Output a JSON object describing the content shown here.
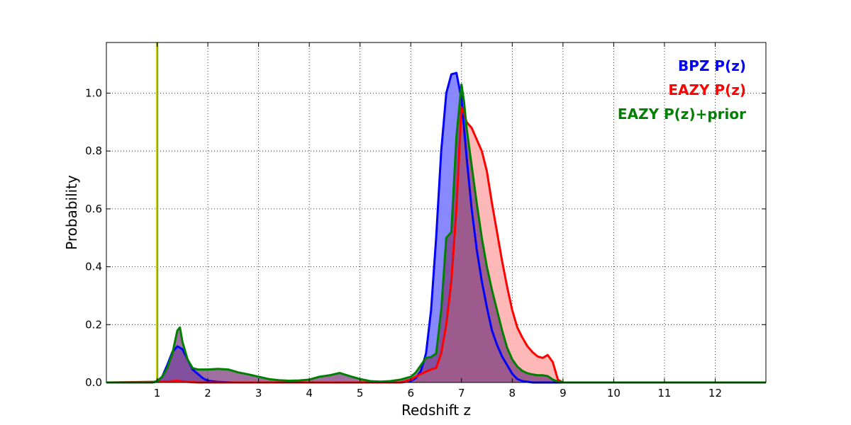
{
  "chart_data": {
    "type": "area",
    "title": "",
    "xlabel": "Redshift z",
    "ylabel": "Probability",
    "xlim": [
      0,
      13
    ],
    "ylim": [
      0,
      1.175
    ],
    "xticks": [
      1,
      2,
      3,
      4,
      5,
      6,
      7,
      8,
      9,
      10,
      11,
      12
    ],
    "yticks": [
      0.0,
      0.2,
      0.4,
      0.6,
      0.8,
      1.0
    ],
    "ytick_labels": [
      "0.0",
      "0.2",
      "0.4",
      "0.6",
      "0.8",
      "1.0"
    ],
    "grid": true,
    "legend_placement": "top-right",
    "vertical_marker": {
      "x": 1.0,
      "color": "#c8c800"
    },
    "series": [
      {
        "name": "BPZ P(z)",
        "color": "#0000ff",
        "fill": "#7b7bff",
        "filled": true,
        "points": [
          [
            0,
            0
          ],
          [
            0.9,
            0
          ],
          [
            1.0,
            0.005
          ],
          [
            1.1,
            0.02
          ],
          [
            1.2,
            0.06
          ],
          [
            1.3,
            0.105
          ],
          [
            1.4,
            0.125
          ],
          [
            1.5,
            0.115
          ],
          [
            1.6,
            0.08
          ],
          [
            1.7,
            0.045
          ],
          [
            1.8,
            0.03
          ],
          [
            1.9,
            0.015
          ],
          [
            2.0,
            0.006
          ],
          [
            2.2,
            0.002
          ],
          [
            2.5,
            0.0
          ],
          [
            5.8,
            0.0
          ],
          [
            6.0,
            0.005
          ],
          [
            6.1,
            0.015
          ],
          [
            6.2,
            0.04
          ],
          [
            6.3,
            0.1
          ],
          [
            6.4,
            0.25
          ],
          [
            6.5,
            0.5
          ],
          [
            6.6,
            0.8
          ],
          [
            6.7,
            1.0
          ],
          [
            6.8,
            1.065
          ],
          [
            6.9,
            1.07
          ],
          [
            7.0,
            0.98
          ],
          [
            7.1,
            0.78
          ],
          [
            7.2,
            0.6
          ],
          [
            7.3,
            0.46
          ],
          [
            7.4,
            0.35
          ],
          [
            7.5,
            0.26
          ],
          [
            7.6,
            0.18
          ],
          [
            7.7,
            0.13
          ],
          [
            7.8,
            0.09
          ],
          [
            7.9,
            0.06
          ],
          [
            8.0,
            0.03
          ],
          [
            8.1,
            0.012
          ],
          [
            8.2,
            0.005
          ],
          [
            8.4,
            0.0
          ],
          [
            13.0,
            0.0
          ]
        ]
      },
      {
        "name": "EAZY P(z)",
        "color": "#ff0000",
        "fill": "#ffb0b0",
        "filled": true,
        "points": [
          [
            0,
            0
          ],
          [
            1.2,
            0.003
          ],
          [
            1.4,
            0.006
          ],
          [
            1.6,
            0.002
          ],
          [
            1.8,
            0.0
          ],
          [
            5.8,
            0.0
          ],
          [
            6.0,
            0.01
          ],
          [
            6.2,
            0.03
          ],
          [
            6.4,
            0.045
          ],
          [
            6.5,
            0.05
          ],
          [
            6.6,
            0.1
          ],
          [
            6.7,
            0.2
          ],
          [
            6.8,
            0.35
          ],
          [
            6.9,
            0.6
          ],
          [
            7.0,
            0.95
          ],
          [
            7.05,
            0.93
          ],
          [
            7.1,
            0.9
          ],
          [
            7.2,
            0.88
          ],
          [
            7.3,
            0.84
          ],
          [
            7.4,
            0.8
          ],
          [
            7.5,
            0.73
          ],
          [
            7.6,
            0.62
          ],
          [
            7.7,
            0.52
          ],
          [
            7.8,
            0.42
          ],
          [
            7.9,
            0.33
          ],
          [
            8.0,
            0.25
          ],
          [
            8.1,
            0.19
          ],
          [
            8.2,
            0.155
          ],
          [
            8.3,
            0.125
          ],
          [
            8.4,
            0.105
          ],
          [
            8.5,
            0.09
          ],
          [
            8.6,
            0.085
          ],
          [
            8.7,
            0.095
          ],
          [
            8.8,
            0.07
          ],
          [
            8.9,
            0.01
          ],
          [
            9.0,
            0.0
          ],
          [
            13.0,
            0.0
          ]
        ]
      },
      {
        "name": "EAZY P(z)+prior",
        "color": "#008000",
        "fill": "#7f3f7f",
        "filled": true,
        "points": [
          [
            0,
            0
          ],
          [
            0.9,
            0.0
          ],
          [
            1.0,
            0.003
          ],
          [
            1.1,
            0.02
          ],
          [
            1.2,
            0.05
          ],
          [
            1.3,
            0.1
          ],
          [
            1.4,
            0.18
          ],
          [
            1.45,
            0.19
          ],
          [
            1.5,
            0.14
          ],
          [
            1.6,
            0.08
          ],
          [
            1.7,
            0.05
          ],
          [
            1.8,
            0.045
          ],
          [
            2.0,
            0.045
          ],
          [
            2.2,
            0.047
          ],
          [
            2.4,
            0.045
          ],
          [
            2.6,
            0.035
          ],
          [
            2.8,
            0.028
          ],
          [
            3.0,
            0.02
          ],
          [
            3.2,
            0.012
          ],
          [
            3.4,
            0.008
          ],
          [
            3.6,
            0.006
          ],
          [
            3.8,
            0.007
          ],
          [
            4.0,
            0.01
          ],
          [
            4.2,
            0.02
          ],
          [
            4.4,
            0.025
          ],
          [
            4.6,
            0.033
          ],
          [
            4.8,
            0.022
          ],
          [
            5.0,
            0.012
          ],
          [
            5.2,
            0.005
          ],
          [
            5.4,
            0.003
          ],
          [
            5.6,
            0.005
          ],
          [
            5.8,
            0.01
          ],
          [
            6.0,
            0.02
          ],
          [
            6.1,
            0.035
          ],
          [
            6.2,
            0.06
          ],
          [
            6.3,
            0.085
          ],
          [
            6.4,
            0.088
          ],
          [
            6.5,
            0.1
          ],
          [
            6.6,
            0.25
          ],
          [
            6.7,
            0.5
          ],
          [
            6.8,
            0.52
          ],
          [
            6.9,
            0.85
          ],
          [
            7.0,
            1.03
          ],
          [
            7.05,
            0.97
          ],
          [
            7.1,
            0.88
          ],
          [
            7.2,
            0.75
          ],
          [
            7.3,
            0.62
          ],
          [
            7.4,
            0.5
          ],
          [
            7.5,
            0.4
          ],
          [
            7.6,
            0.32
          ],
          [
            7.7,
            0.25
          ],
          [
            7.8,
            0.18
          ],
          [
            7.9,
            0.12
          ],
          [
            8.0,
            0.08
          ],
          [
            8.1,
            0.055
          ],
          [
            8.2,
            0.04
          ],
          [
            8.3,
            0.032
          ],
          [
            8.4,
            0.028
          ],
          [
            8.5,
            0.025
          ],
          [
            8.6,
            0.025
          ],
          [
            8.7,
            0.022
          ],
          [
            8.8,
            0.01
          ],
          [
            8.9,
            0.003
          ],
          [
            9.0,
            0.0
          ],
          [
            13.0,
            0.0
          ]
        ]
      }
    ]
  }
}
